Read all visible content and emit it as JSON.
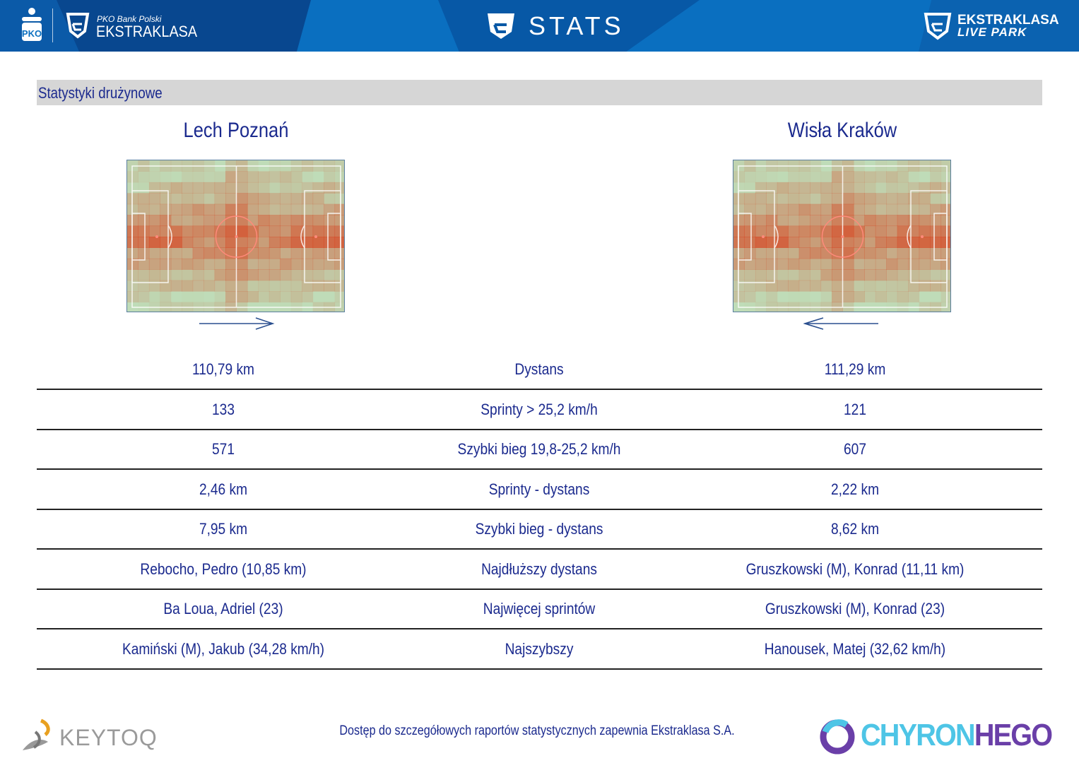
{
  "header": {
    "left_logo_small": "PKO Bank Polski",
    "left_logo_big": "EKSTRAKLASA",
    "pko_logo": "PKO",
    "title": "STATS",
    "right_logo_line1": "EKSTRAKLASA",
    "right_logo_line2": "LIVE PARK"
  },
  "section_title": "Statystyki drużynowe",
  "teams": {
    "home": {
      "name": "Lech Poznań",
      "direction": "right"
    },
    "away": {
      "name": "Wisła Kraków",
      "direction": "left"
    }
  },
  "stats": [
    {
      "home": "110,79 km",
      "label": "Dystans",
      "away": "111,29 km"
    },
    {
      "home": "133",
      "label": "Sprinty > 25,2 km/h",
      "away": "121"
    },
    {
      "home": "571",
      "label": "Szybki bieg 19,8-25,2 km/h",
      "away": "607"
    },
    {
      "home": "2,46 km",
      "label": "Sprinty - dystans",
      "away": "2,22 km"
    },
    {
      "home": "7,95 km",
      "label": "Szybki bieg - dystans",
      "away": "8,62 km"
    },
    {
      "home": "Rebocho, Pedro (10,85 km)",
      "label": "Najdłuższy dystans",
      "away": "Gruszkowski (M), Konrad (11,11 km)"
    },
    {
      "home": "Ba Loua, Adriel (23)",
      "label": "Najwięcej sprintów",
      "away": "Gruszkowski (M), Konrad (23)"
    },
    {
      "home": "Kamiński (M), Jakub (34,28 km/h)",
      "label": "Najszybszy",
      "away": "Hanousek, Matej (32,62 km/h)"
    }
  ],
  "footer": {
    "left_logo": "KEYTOQ",
    "note": "Dostęp do szczegółowych raportów statystycznych zapewnia Ekstraklasa S.A.",
    "right_logo_a": "CHYRON",
    "right_logo_b": "HEGO"
  },
  "colors": {
    "text": "#1b2a8e",
    "header": "#0a6fc0",
    "heat": "#d8401c",
    "pitch": "#bfdcb8"
  }
}
